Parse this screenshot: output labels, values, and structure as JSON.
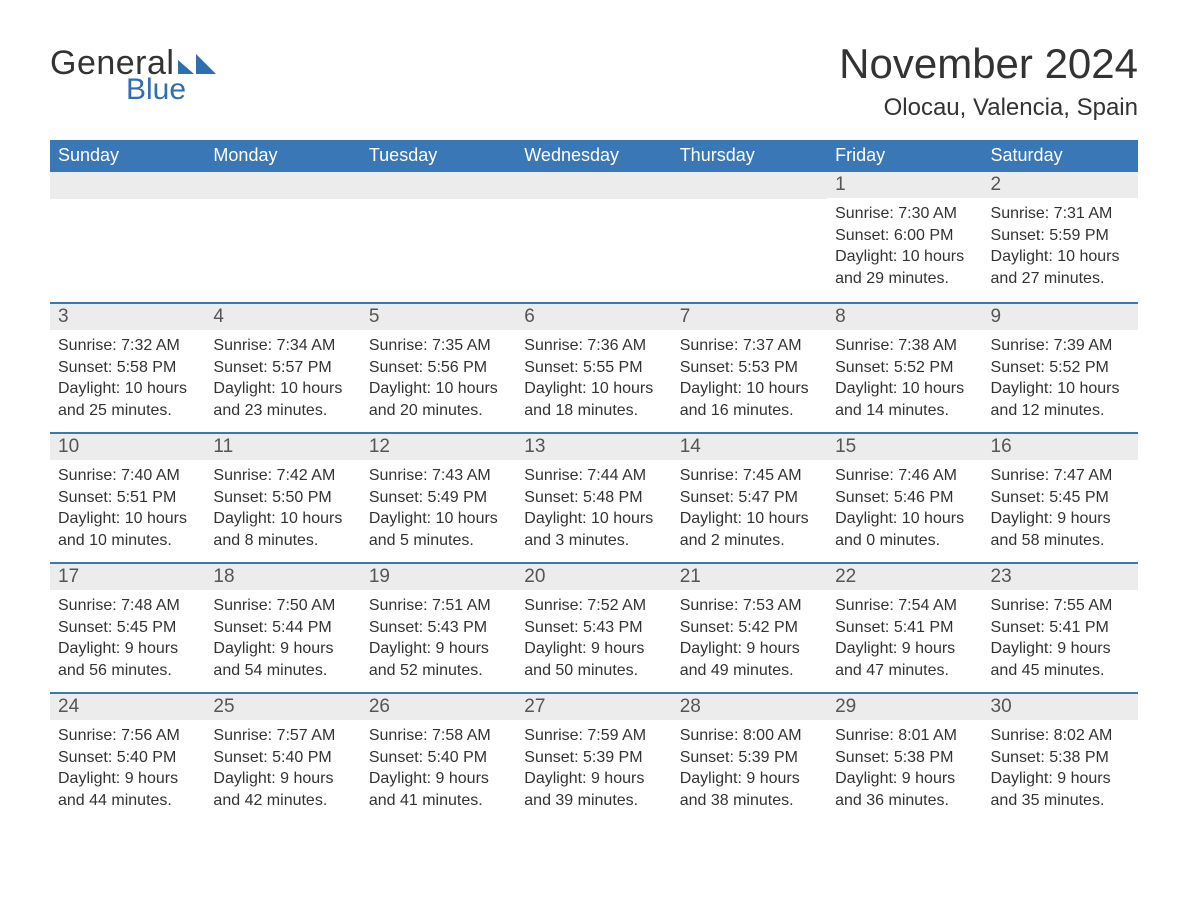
{
  "brand": {
    "word1": "General",
    "word2": "Blue",
    "mark_color": "#2f6fb0",
    "text_color": "#333333"
  },
  "title": "November 2024",
  "location": "Olocau, Valencia, Spain",
  "colors": {
    "header_bg": "#3a77b6",
    "header_text": "#ffffff",
    "daynum_bg": "#ececec",
    "daynum_text": "#555555",
    "body_text": "#333333",
    "rule": "#3a77b6",
    "page_bg": "#ffffff"
  },
  "typography": {
    "title_fontsize": 42,
    "location_fontsize": 24,
    "dayheader_fontsize": 18,
    "daynum_fontsize": 19,
    "body_fontsize": 16,
    "font_family": "Arial"
  },
  "day_headers": [
    "Sunday",
    "Monday",
    "Tuesday",
    "Wednesday",
    "Thursday",
    "Friday",
    "Saturday"
  ],
  "weeks": [
    [
      null,
      null,
      null,
      null,
      null,
      {
        "n": "1",
        "sunrise": "Sunrise: 7:30 AM",
        "sunset": "Sunset: 6:00 PM",
        "daylight1": "Daylight: 10 hours",
        "daylight2": "and 29 minutes."
      },
      {
        "n": "2",
        "sunrise": "Sunrise: 7:31 AM",
        "sunset": "Sunset: 5:59 PM",
        "daylight1": "Daylight: 10 hours",
        "daylight2": "and 27 minutes."
      }
    ],
    [
      {
        "n": "3",
        "sunrise": "Sunrise: 7:32 AM",
        "sunset": "Sunset: 5:58 PM",
        "daylight1": "Daylight: 10 hours",
        "daylight2": "and 25 minutes."
      },
      {
        "n": "4",
        "sunrise": "Sunrise: 7:34 AM",
        "sunset": "Sunset: 5:57 PM",
        "daylight1": "Daylight: 10 hours",
        "daylight2": "and 23 minutes."
      },
      {
        "n": "5",
        "sunrise": "Sunrise: 7:35 AM",
        "sunset": "Sunset: 5:56 PM",
        "daylight1": "Daylight: 10 hours",
        "daylight2": "and 20 minutes."
      },
      {
        "n": "6",
        "sunrise": "Sunrise: 7:36 AM",
        "sunset": "Sunset: 5:55 PM",
        "daylight1": "Daylight: 10 hours",
        "daylight2": "and 18 minutes."
      },
      {
        "n": "7",
        "sunrise": "Sunrise: 7:37 AM",
        "sunset": "Sunset: 5:53 PM",
        "daylight1": "Daylight: 10 hours",
        "daylight2": "and 16 minutes."
      },
      {
        "n": "8",
        "sunrise": "Sunrise: 7:38 AM",
        "sunset": "Sunset: 5:52 PM",
        "daylight1": "Daylight: 10 hours",
        "daylight2": "and 14 minutes."
      },
      {
        "n": "9",
        "sunrise": "Sunrise: 7:39 AM",
        "sunset": "Sunset: 5:52 PM",
        "daylight1": "Daylight: 10 hours",
        "daylight2": "and 12 minutes."
      }
    ],
    [
      {
        "n": "10",
        "sunrise": "Sunrise: 7:40 AM",
        "sunset": "Sunset: 5:51 PM",
        "daylight1": "Daylight: 10 hours",
        "daylight2": "and 10 minutes."
      },
      {
        "n": "11",
        "sunrise": "Sunrise: 7:42 AM",
        "sunset": "Sunset: 5:50 PM",
        "daylight1": "Daylight: 10 hours",
        "daylight2": "and 8 minutes."
      },
      {
        "n": "12",
        "sunrise": "Sunrise: 7:43 AM",
        "sunset": "Sunset: 5:49 PM",
        "daylight1": "Daylight: 10 hours",
        "daylight2": "and 5 minutes."
      },
      {
        "n": "13",
        "sunrise": "Sunrise: 7:44 AM",
        "sunset": "Sunset: 5:48 PM",
        "daylight1": "Daylight: 10 hours",
        "daylight2": "and 3 minutes."
      },
      {
        "n": "14",
        "sunrise": "Sunrise: 7:45 AM",
        "sunset": "Sunset: 5:47 PM",
        "daylight1": "Daylight: 10 hours",
        "daylight2": "and 2 minutes."
      },
      {
        "n": "15",
        "sunrise": "Sunrise: 7:46 AM",
        "sunset": "Sunset: 5:46 PM",
        "daylight1": "Daylight: 10 hours",
        "daylight2": "and 0 minutes."
      },
      {
        "n": "16",
        "sunrise": "Sunrise: 7:47 AM",
        "sunset": "Sunset: 5:45 PM",
        "daylight1": "Daylight: 9 hours",
        "daylight2": "and 58 minutes."
      }
    ],
    [
      {
        "n": "17",
        "sunrise": "Sunrise: 7:48 AM",
        "sunset": "Sunset: 5:45 PM",
        "daylight1": "Daylight: 9 hours",
        "daylight2": "and 56 minutes."
      },
      {
        "n": "18",
        "sunrise": "Sunrise: 7:50 AM",
        "sunset": "Sunset: 5:44 PM",
        "daylight1": "Daylight: 9 hours",
        "daylight2": "and 54 minutes."
      },
      {
        "n": "19",
        "sunrise": "Sunrise: 7:51 AM",
        "sunset": "Sunset: 5:43 PM",
        "daylight1": "Daylight: 9 hours",
        "daylight2": "and 52 minutes."
      },
      {
        "n": "20",
        "sunrise": "Sunrise: 7:52 AM",
        "sunset": "Sunset: 5:43 PM",
        "daylight1": "Daylight: 9 hours",
        "daylight2": "and 50 minutes."
      },
      {
        "n": "21",
        "sunrise": "Sunrise: 7:53 AM",
        "sunset": "Sunset: 5:42 PM",
        "daylight1": "Daylight: 9 hours",
        "daylight2": "and 49 minutes."
      },
      {
        "n": "22",
        "sunrise": "Sunrise: 7:54 AM",
        "sunset": "Sunset: 5:41 PM",
        "daylight1": "Daylight: 9 hours",
        "daylight2": "and 47 minutes."
      },
      {
        "n": "23",
        "sunrise": "Sunrise: 7:55 AM",
        "sunset": "Sunset: 5:41 PM",
        "daylight1": "Daylight: 9 hours",
        "daylight2": "and 45 minutes."
      }
    ],
    [
      {
        "n": "24",
        "sunrise": "Sunrise: 7:56 AM",
        "sunset": "Sunset: 5:40 PM",
        "daylight1": "Daylight: 9 hours",
        "daylight2": "and 44 minutes."
      },
      {
        "n": "25",
        "sunrise": "Sunrise: 7:57 AM",
        "sunset": "Sunset: 5:40 PM",
        "daylight1": "Daylight: 9 hours",
        "daylight2": "and 42 minutes."
      },
      {
        "n": "26",
        "sunrise": "Sunrise: 7:58 AM",
        "sunset": "Sunset: 5:40 PM",
        "daylight1": "Daylight: 9 hours",
        "daylight2": "and 41 minutes."
      },
      {
        "n": "27",
        "sunrise": "Sunrise: 7:59 AM",
        "sunset": "Sunset: 5:39 PM",
        "daylight1": "Daylight: 9 hours",
        "daylight2": "and 39 minutes."
      },
      {
        "n": "28",
        "sunrise": "Sunrise: 8:00 AM",
        "sunset": "Sunset: 5:39 PM",
        "daylight1": "Daylight: 9 hours",
        "daylight2": "and 38 minutes."
      },
      {
        "n": "29",
        "sunrise": "Sunrise: 8:01 AM",
        "sunset": "Sunset: 5:38 PM",
        "daylight1": "Daylight: 9 hours",
        "daylight2": "and 36 minutes."
      },
      {
        "n": "30",
        "sunrise": "Sunrise: 8:02 AM",
        "sunset": "Sunset: 5:38 PM",
        "daylight1": "Daylight: 9 hours",
        "daylight2": "and 35 minutes."
      }
    ]
  ]
}
